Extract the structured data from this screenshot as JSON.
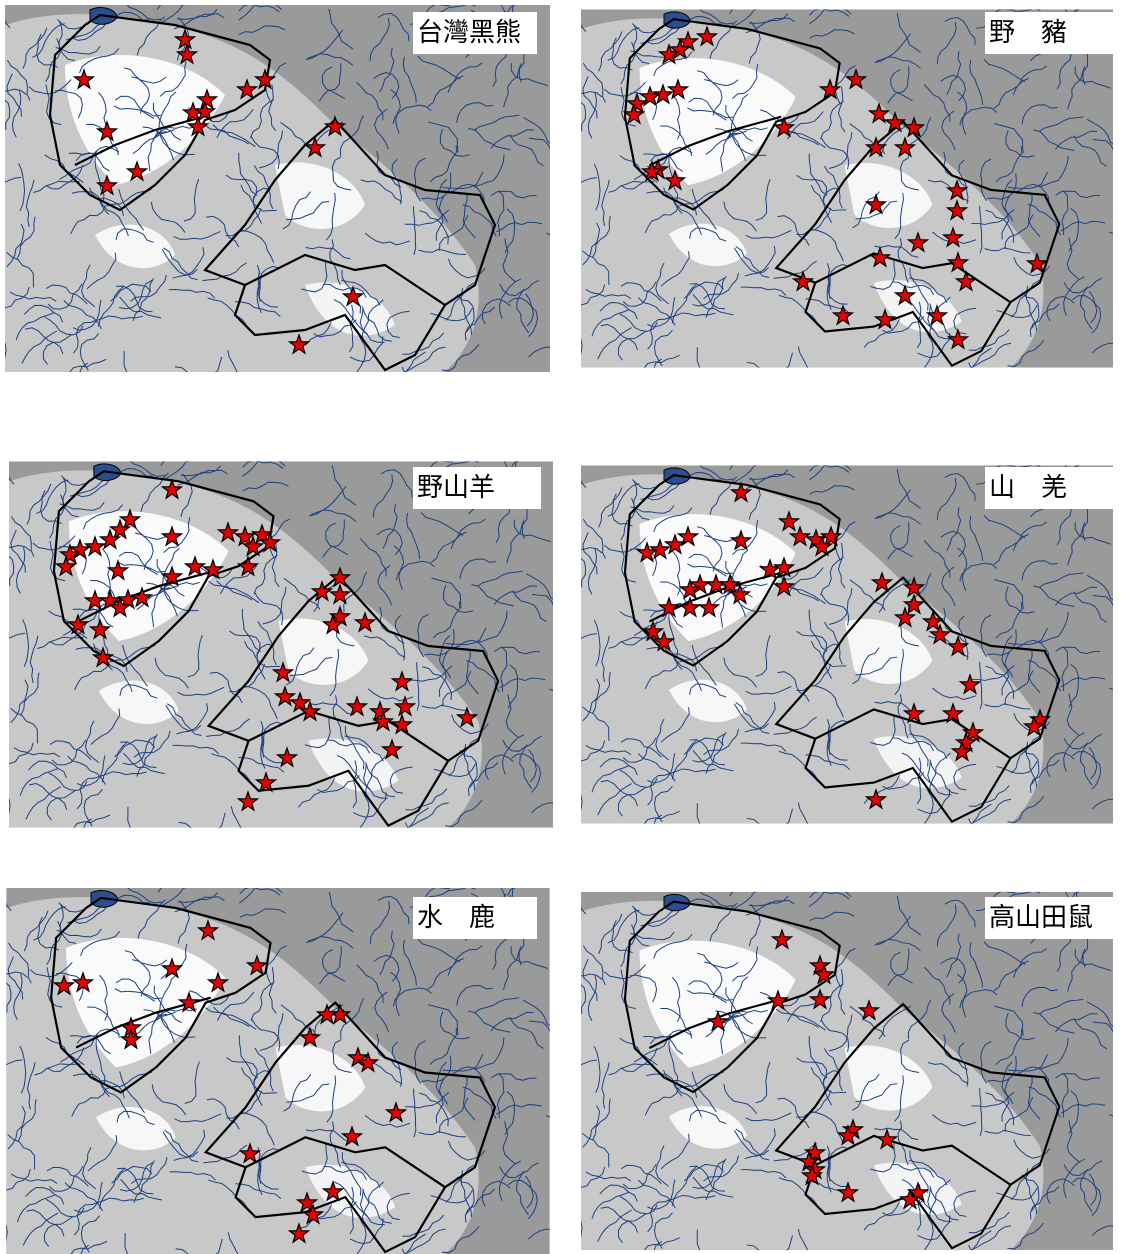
{
  "panels": [
    {
      "label": "台灣黑熊"
    },
    {
      "label": "野　豬"
    },
    {
      "label": "野山羊"
    },
    {
      "label": "山　羌"
    },
    {
      "label": "水　鹿"
    },
    {
      "label": "高山田鼠"
    }
  ]
}
